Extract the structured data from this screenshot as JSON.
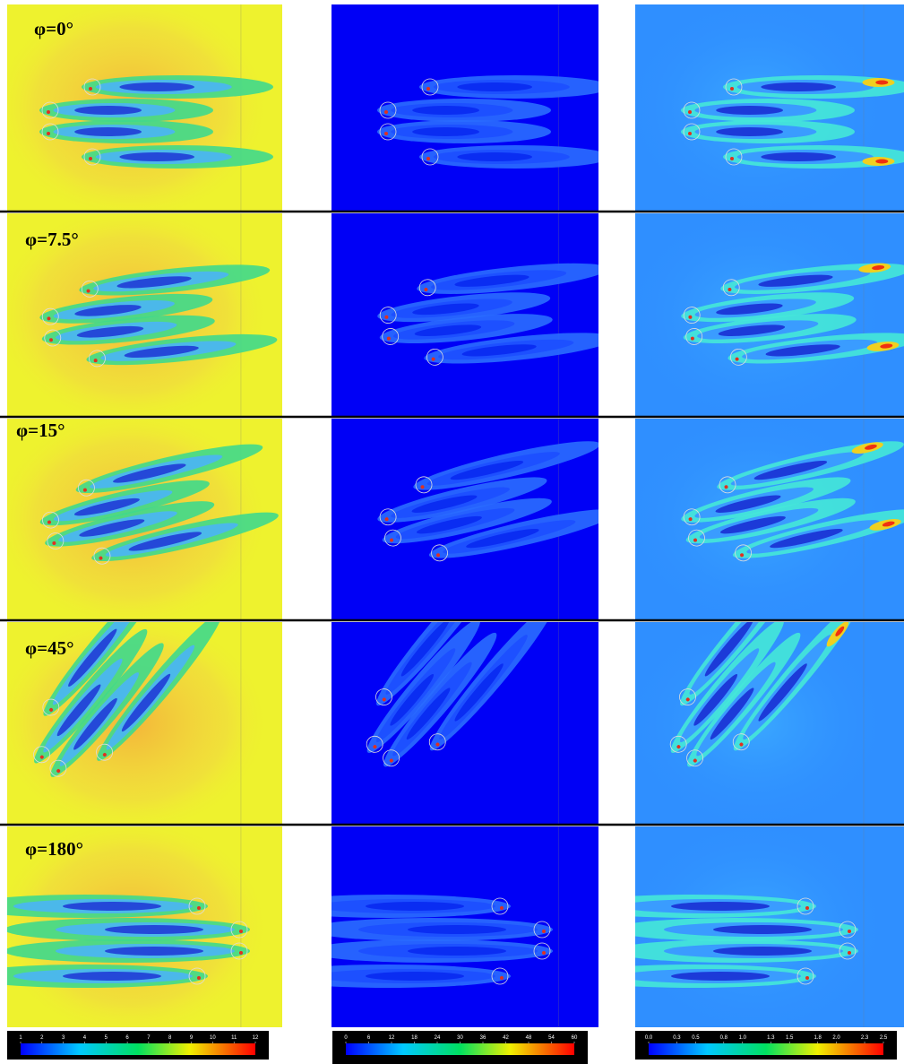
{
  "panels": [
    {
      "label": "φ=0°"
    },
    {
      "label": "φ=7.5°"
    },
    {
      "label": "φ=15°"
    },
    {
      "label": "φ=45°"
    },
    {
      "label": "φ=180°"
    }
  ],
  "colorbars": [
    {
      "ticks": [
        1,
        2,
        3,
        4,
        5,
        6,
        7,
        8,
        9,
        10,
        11,
        12
      ]
    },
    {
      "ticks": [
        0,
        6,
        12,
        18,
        24,
        30,
        36,
        42,
        48,
        54,
        60
      ]
    },
    {
      "ticks": [
        {
          "value": 0,
          "label": "0.0"
        },
        0.3,
        0.5,
        0.8,
        {
          "value": 1,
          "label": "1.0"
        },
        1.3,
        1.5,
        1.8,
        {
          "value": 2,
          "label": "2.0"
        },
        2.3,
        2.5
      ]
    }
  ]
}
